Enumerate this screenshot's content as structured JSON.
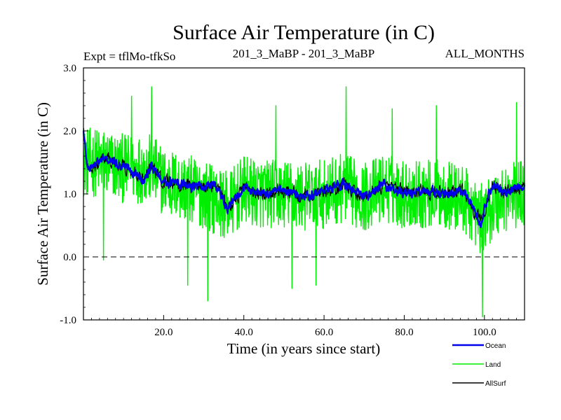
{
  "chart_data": {
    "type": "line",
    "title": "Surface Air Temperature (in C)",
    "subtitle_left": "Expt = tflMo-tfkSo",
    "subtitle_center": "201_3_MaBP - 201_3_MaBP",
    "subtitle_right": "ALL_MONTHS",
    "xlabel": "Time (in years since start)",
    "ylabel": "Surface Air Temperature (in C)",
    "xlim": [
      0,
      110
    ],
    "ylim": [
      -1.0,
      3.0
    ],
    "xticks": [
      20,
      40,
      60,
      80,
      100
    ],
    "xtick_labels": [
      "20.0",
      "40.0",
      "60.0",
      "80.0",
      "100.0"
    ],
    "yticks": [
      -1.0,
      0.0,
      1.0,
      2.0,
      3.0
    ],
    "ytick_labels": [
      "-1.0",
      "0.0",
      "1.0",
      "2.0",
      "3.0"
    ],
    "reference_line": {
      "y": 0.0,
      "style": "dashed"
    },
    "legend_placement": "bottom-right",
    "samples_per_year": 12,
    "series": [
      {
        "name": "Land",
        "color": "#00ee00",
        "anchor_x": [
          0,
          5,
          10,
          17,
          20,
          25,
          30,
          36,
          40,
          45,
          50,
          55,
          60,
          65,
          70,
          75,
          80,
          85,
          90,
          95,
          99,
          102,
          105,
          110
        ],
        "anchor_y": [
          1.5,
          1.5,
          1.4,
          1.4,
          1.2,
          1.1,
          1.0,
          0.8,
          1.05,
          1.0,
          1.0,
          0.95,
          1.0,
          1.1,
          0.95,
          1.1,
          1.0,
          1.0,
          1.0,
          0.9,
          0.6,
          0.8,
          0.95,
          1.0
        ],
        "noise_amplitude": 0.55,
        "extremes": [
          [
            17,
            2.7
          ],
          [
            65.5,
            2.7
          ],
          [
            12,
            2.55
          ],
          [
            31,
            -0.7
          ],
          [
            26,
            -0.45
          ],
          [
            99.5,
            -0.95
          ],
          [
            52,
            -0.5
          ],
          [
            58,
            -0.45
          ],
          [
            48,
            2.4
          ],
          [
            77,
            2.35
          ],
          [
            88,
            2.4
          ],
          [
            108,
            2.45
          ],
          [
            5,
            -0.05
          ]
        ]
      },
      {
        "name": "Ocean",
        "color": "#0000ee",
        "anchor_x": [
          0,
          1,
          5,
          10,
          15,
          17,
          20,
          25,
          30,
          33,
          36,
          40,
          45,
          50,
          55,
          60,
          65,
          70,
          75,
          80,
          85,
          90,
          95,
          99,
          102,
          105,
          110
        ],
        "anchor_y": [
          2.0,
          1.4,
          1.55,
          1.45,
          1.25,
          1.45,
          1.2,
          1.15,
          1.1,
          1.15,
          0.75,
          1.1,
          1.0,
          1.05,
          0.95,
          1.05,
          1.15,
          0.95,
          1.15,
          1.0,
          1.05,
          1.0,
          1.05,
          0.55,
          1.15,
          1.0,
          1.15
        ],
        "noise_amplitude": 0.07
      },
      {
        "name": "AllSurf",
        "color": "#000000",
        "anchor_x": [
          0,
          1,
          5,
          10,
          15,
          17,
          20,
          25,
          30,
          33,
          36,
          40,
          45,
          50,
          55,
          60,
          65,
          70,
          75,
          80,
          85,
          90,
          95,
          99,
          102,
          105,
          110
        ],
        "anchor_y": [
          2.0,
          1.4,
          1.55,
          1.45,
          1.25,
          1.45,
          1.2,
          1.15,
          1.1,
          1.15,
          0.75,
          1.1,
          1.0,
          1.05,
          0.95,
          1.05,
          1.15,
          0.95,
          1.15,
          1.0,
          1.05,
          1.0,
          1.05,
          0.55,
          1.15,
          1.0,
          1.15
        ],
        "noise_amplitude": 0.1
      }
    ]
  }
}
